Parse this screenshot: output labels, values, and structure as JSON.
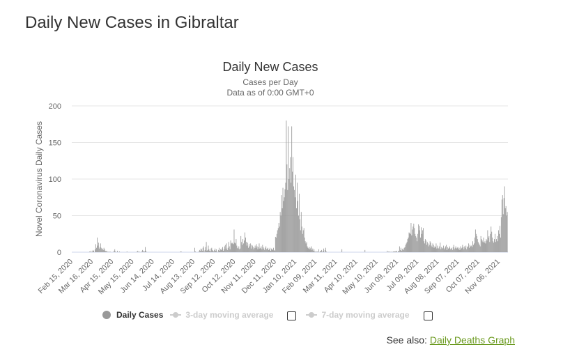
{
  "page_title": "Daily New Cases in Gibraltar",
  "see_also": {
    "label": "See also:",
    "link": "Daily Deaths Graph"
  },
  "legend": {
    "daily": "Daily Cases",
    "avg3": "3-day moving average",
    "avg7": "7-day moving average"
  },
  "colors": {
    "bar": "#999999",
    "grid": "#e6e6e6",
    "baseline": "#ccd6eb",
    "link": "#6b9a1f"
  },
  "chart_data": {
    "type": "bar",
    "title": "Daily New Cases",
    "subtitle_1": "Cases per Day",
    "subtitle_2": "Data as of 0:00 GMT+0",
    "ylabel": "Novel Coronavirus Daily Cases",
    "xlabel": "",
    "ylim": [
      0,
      200
    ],
    "yticks": [
      "0",
      "50",
      "100",
      "150",
      "200"
    ],
    "grid": true,
    "start_date": "Feb 15, 2020",
    "xtick_every_days": 30,
    "xticks": [
      "Feb 15, 2020",
      "Mar 16, 2020",
      "Apr 15, 2020",
      "May 15, 2020",
      "Jun 14, 2020",
      "Jul 14, 2020",
      "Aug 13, 2020",
      "Sep 12, 2020",
      "Oct 12, 2020",
      "Nov 11, 2020",
      "Dec 11, 2020",
      "Jan 10, 2021",
      "Feb 09, 2021",
      "Mar 11, 2021",
      "Apr 10, 2021",
      "May 10, 2021",
      "Jun 09, 2021",
      "Jul 09, 2021",
      "Aug 08, 2021",
      "Sep 07, 2021",
      "Oct 07, 2021",
      "Nov 06, 2021"
    ],
    "values": [
      0,
      0,
      0,
      0,
      0,
      0,
      0,
      0,
      0,
      0,
      0,
      0,
      0,
      0,
      0,
      0,
      0,
      0,
      0,
      0,
      0,
      0,
      0,
      0,
      0,
      0,
      1,
      0,
      2,
      0,
      1,
      3,
      2,
      0,
      4,
      11,
      6,
      20,
      9,
      13,
      5,
      7,
      12,
      6,
      4,
      5,
      3,
      6,
      4,
      2,
      1,
      2,
      0,
      1,
      0,
      0,
      1,
      0,
      0,
      0,
      0,
      0,
      2,
      4,
      1,
      0,
      0,
      2,
      0,
      0,
      1,
      0,
      0,
      0,
      0,
      0,
      0,
      0,
      0,
      0,
      0,
      1,
      0,
      0,
      0,
      0,
      0,
      0,
      0,
      0,
      0,
      0,
      0,
      0,
      0,
      0,
      1,
      2,
      0,
      1,
      0,
      0,
      0,
      1,
      3,
      2,
      0,
      1,
      7,
      2,
      0,
      0,
      0,
      0,
      0,
      0,
      0,
      0,
      0,
      0,
      0,
      0,
      0,
      0,
      0,
      0,
      0,
      0,
      0,
      0,
      0,
      0,
      0,
      0,
      0,
      0,
      0,
      0,
      0,
      0,
      0,
      0,
      0,
      0,
      0,
      0,
      0,
      0,
      0,
      0,
      0,
      0,
      0,
      0,
      0,
      0,
      0,
      0,
      0,
      0,
      1,
      1,
      0,
      0,
      0,
      0,
      0,
      0,
      0,
      0,
      0,
      0,
      0,
      0,
      0,
      0,
      0,
      0,
      0,
      0,
      0,
      6,
      1,
      0,
      0,
      0,
      0,
      1,
      3,
      2,
      5,
      4,
      2,
      6,
      8,
      1,
      3,
      7,
      14,
      2,
      3,
      9,
      4,
      2,
      1,
      5,
      6,
      3,
      2,
      1,
      3,
      5,
      2,
      4,
      1,
      0,
      3,
      6,
      2,
      4,
      3,
      5,
      7,
      2,
      4,
      8,
      10,
      5,
      12,
      3,
      6,
      14,
      8,
      4,
      16,
      12,
      13,
      12,
      11,
      31,
      13,
      12,
      18,
      9,
      6,
      5,
      8,
      4,
      5,
      22,
      14,
      10,
      18,
      12,
      16,
      27,
      20,
      14,
      9,
      13,
      6,
      11,
      8,
      12,
      5,
      10,
      9,
      7,
      4,
      6,
      9,
      6,
      11,
      8,
      4,
      7,
      12,
      5,
      6,
      8,
      4,
      10,
      7,
      5,
      3,
      6,
      8,
      4,
      5,
      6,
      3,
      4,
      6,
      2,
      5,
      3,
      4,
      6,
      3,
      2,
      21,
      20,
      25,
      30,
      33,
      40,
      35,
      55,
      50,
      78,
      60,
      88,
      70,
      75,
      86,
      95,
      180,
      120,
      85,
      172,
      100,
      115,
      130,
      95,
      172,
      110,
      130,
      90,
      85,
      75,
      106,
      60,
      95,
      70,
      50,
      80,
      45,
      30,
      55,
      35,
      25,
      30,
      33,
      20,
      15,
      12,
      14,
      8,
      6,
      5,
      7,
      4,
      6,
      8,
      3,
      5,
      2,
      4,
      1,
      0,
      2,
      0,
      1,
      0,
      4,
      0,
      2,
      1,
      3,
      0,
      2,
      5,
      0,
      3,
      6,
      1,
      0,
      0,
      0,
      0,
      0,
      0,
      0,
      0,
      0,
      0,
      0,
      0,
      0,
      0,
      0,
      0,
      0,
      0,
      0,
      0,
      0,
      0,
      4,
      0,
      0,
      0,
      0,
      0,
      0,
      0,
      0,
      0,
      0,
      0,
      0,
      0,
      0,
      0,
      0,
      0,
      0,
      0,
      0,
      0,
      0,
      0,
      0,
      0,
      0,
      0,
      0,
      0,
      0,
      0,
      0,
      0,
      3,
      0,
      0,
      0,
      0,
      0,
      0,
      0,
      0,
      0,
      0,
      0,
      0,
      0,
      0,
      0,
      0,
      0,
      0,
      0,
      0,
      0,
      0,
      0,
      0,
      0,
      0,
      0,
      0,
      0,
      0,
      0,
      0,
      2,
      0,
      1,
      0,
      1,
      0,
      0,
      1,
      0,
      1,
      1,
      1,
      1,
      2,
      1,
      0,
      2,
      1,
      8,
      3,
      6,
      2,
      4,
      5,
      3,
      6,
      7,
      10,
      12,
      14,
      18,
      20,
      27,
      26,
      25,
      40,
      23,
      31,
      35,
      39,
      33,
      25,
      22,
      20,
      15,
      25,
      38,
      30,
      36,
      20,
      34,
      25,
      30,
      33,
      15,
      12,
      18,
      16,
      10,
      14,
      12,
      8,
      10,
      15,
      13,
      9,
      7,
      12,
      10,
      6,
      8,
      7,
      12,
      5,
      9,
      6,
      5,
      8,
      13,
      4,
      7,
      5,
      6,
      9,
      4,
      6,
      8,
      10,
      3,
      7,
      5,
      6,
      8,
      4,
      6,
      5,
      3,
      7,
      10,
      4,
      6,
      8,
      5,
      6,
      7,
      4,
      6,
      3,
      8,
      5,
      6,
      10,
      7,
      4,
      8,
      6,
      9,
      4,
      7,
      8,
      12,
      6,
      10,
      8,
      9,
      7,
      15,
      10,
      12,
      20,
      31,
      25,
      22,
      18,
      14,
      12,
      10,
      8,
      22,
      18,
      16,
      14,
      20,
      13,
      15,
      12,
      18,
      16,
      30,
      20,
      22,
      14,
      25,
      35,
      28,
      20,
      15,
      13,
      18,
      25,
      14,
      18,
      22,
      15,
      30,
      25,
      36,
      20,
      48,
      72,
      78,
      52,
      74,
      90,
      60,
      63,
      50,
      55
    ]
  }
}
